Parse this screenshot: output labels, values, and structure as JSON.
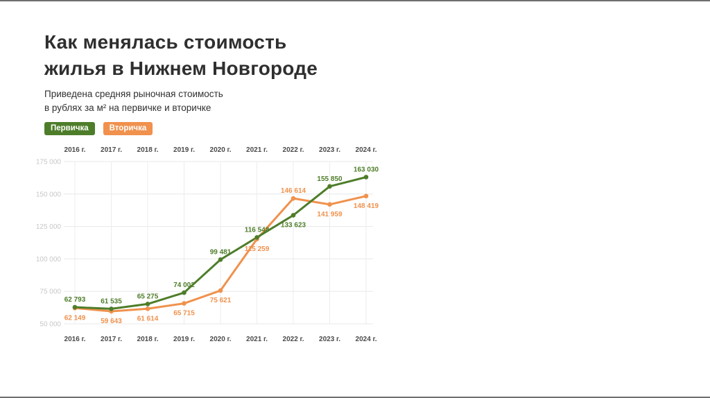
{
  "page": {
    "title_line1": "Как менялась стоимость",
    "title_line2": "жилья в Нижнем Новгороде",
    "subtitle_line1": "Приведена средняя рыночная стоимость",
    "subtitle_line2": "в рублях за м² на первичке и вторичке"
  },
  "legend": [
    {
      "label": "Первичка",
      "color": "#4e7d2a"
    },
    {
      "label": "Вторичка",
      "color": "#f0914d"
    }
  ],
  "chart_data": {
    "type": "line",
    "title": "Как менялась стоимость жилья в Нижнем Новгороде",
    "categories": [
      "2016 г.",
      "2017 г.",
      "2018 г.",
      "2019 г.",
      "2020 г.",
      "2021 г.",
      "2022 г.",
      "2023 г.",
      "2024 г."
    ],
    "series": [
      {
        "name": "Первичка",
        "color": "#4e7d2a",
        "values": [
          62793,
          61535,
          65275,
          74002,
          99481,
          116548,
          133623,
          155850,
          163030
        ]
      },
      {
        "name": "Вторичка",
        "color": "#f0914d",
        "values": [
          62149,
          59643,
          61614,
          65715,
          75621,
          115259,
          146614,
          141959,
          148419
        ]
      }
    ],
    "ylim": [
      50000,
      175000
    ],
    "yticks": [
      50000,
      75000,
      100000,
      125000,
      150000,
      175000
    ],
    "ytick_labels": [
      "50 000",
      "75 000",
      "100 000",
      "125 000",
      "150 000",
      "175 000"
    ],
    "grid": true,
    "x_axis_top": true,
    "x_axis_bottom": true,
    "legend_position": "top-left",
    "xlabel": "",
    "ylabel": ""
  }
}
